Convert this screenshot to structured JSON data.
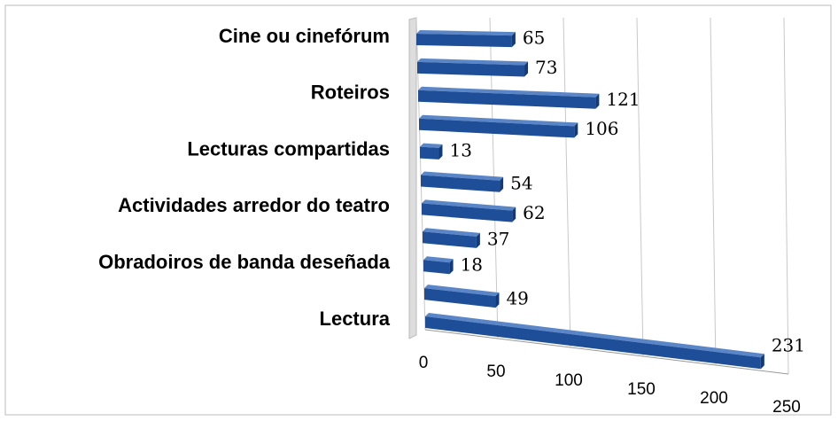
{
  "chart_data": {
    "type": "bar",
    "categories": [
      "Cine ou cinefórum",
      null,
      "Roteiros",
      null,
      "Lecturas compartidas",
      null,
      "Actividades arredor do teatro",
      null,
      "Obradoiros de banda deseñada",
      null,
      "Lectura"
    ],
    "values": [
      65,
      73,
      121,
      106,
      13,
      54,
      62,
      37,
      18,
      49,
      231
    ],
    "color": "#1f4e99",
    "xlim": [
      0,
      250
    ],
    "xticks": [
      0,
      50,
      100,
      150,
      200,
      250
    ],
    "grid": true
  }
}
